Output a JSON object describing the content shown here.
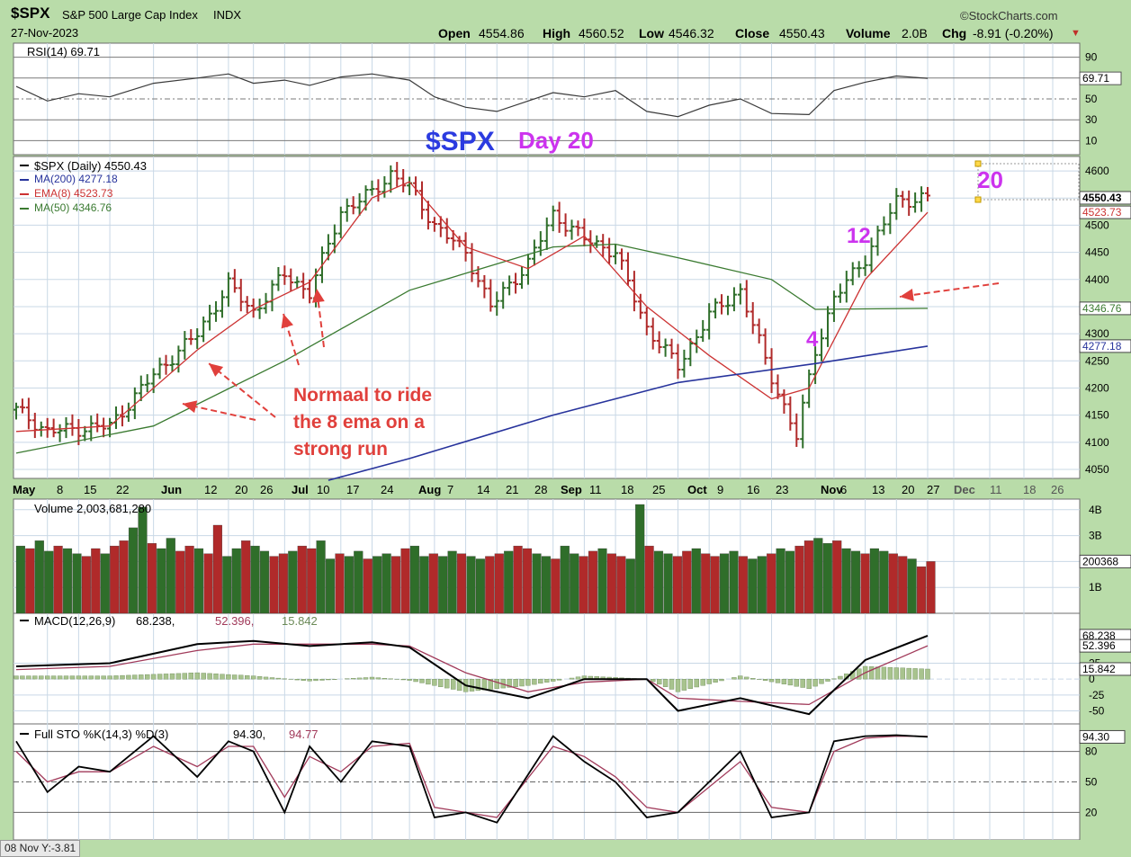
{
  "header": {
    "symbol": "$SPX",
    "name": "S&P 500 Large Cap Index",
    "exchange": "INDX",
    "date": "27-Nov-2023",
    "brand": "©StockCharts.com",
    "open_label": "Open",
    "open": "4554.86",
    "high_label": "High",
    "high": "4560.52",
    "low_label": "Low",
    "low": "4546.32",
    "close_label": "Close",
    "close": "4550.43",
    "volume_label": "Volume",
    "volume": "2.0B",
    "chg_label": "Chg",
    "chg": "-8.91 (-0.20%)",
    "chg_arrow": "▼"
  },
  "status_bar": "08 Nov Y:-3.81",
  "colors": {
    "background": "#b9dca9",
    "panel": "#ffffff",
    "grid": "#c9d8e6",
    "up_bar": "#2f6e2a",
    "down_bar": "#b02a2a",
    "ma200": "#27339c",
    "ema8": "#cc3333",
    "ma50": "#3a7a30",
    "annotation_red": "#e0403c",
    "annotation_magenta": "#cc33ee",
    "title_blue": "#2b3be0"
  },
  "chart_data": [
    {
      "type": "line",
      "panel": "rsi",
      "legend": "RSI(14) 69.71",
      "ylim": [
        0,
        100
      ],
      "ticks": [
        "90",
        "70",
        "50",
        "30",
        "10"
      ],
      "tick_values": [
        90,
        70,
        50,
        30,
        10
      ],
      "last_label": "69.71",
      "series": [
        {
          "name": "RSI(14)",
          "x": [
            "May 1",
            "May 8",
            "May 15",
            "May 22",
            "Jun 1",
            "Jun 12",
            "Jun 20",
            "Jun 26",
            "Jul 3",
            "Jul 10",
            "Jul 17",
            "Jul 24",
            "Aug 1",
            "Aug 7",
            "Aug 14",
            "Aug 21",
            "Aug 28",
            "Sep 1",
            "Sep 11",
            "Sep 18",
            "Sep 25",
            "Oct 2",
            "Oct 9",
            "Oct 16",
            "Oct 23",
            "Oct 31",
            "Nov 6",
            "Nov 13",
            "Nov 20",
            "Nov 27"
          ],
          "values": [
            62,
            48,
            55,
            52,
            65,
            70,
            74,
            65,
            68,
            63,
            71,
            74,
            68,
            52,
            42,
            38,
            48,
            56,
            52,
            58,
            38,
            33,
            44,
            50,
            36,
            35,
            58,
            66,
            72,
            69.71
          ]
        }
      ]
    },
    {
      "type": "line",
      "panel": "price",
      "title": "$SPX",
      "subtitle": "Day 20",
      "legend": [
        "$SPX (Daily) 4550.43",
        "MA(200) 4277.18",
        "EMA(8) 4523.73",
        "MA(50) 4346.76"
      ],
      "ylim": [
        4050,
        4620
      ],
      "ticks": [
        "4600",
        "4550",
        "4500",
        "4450",
        "4400",
        "4350",
        "4300",
        "4250",
        "4200",
        "4150",
        "4100",
        "4050"
      ],
      "tick_values": [
        4600,
        4550,
        4500,
        4450,
        4400,
        4350,
        4300,
        4250,
        4200,
        4150,
        4100,
        4050
      ],
      "right_labels": [
        "4550.43",
        "4523.73",
        "4346.76",
        "4277.18"
      ],
      "right_label_values": [
        4550.43,
        4523.73,
        4346.76,
        4277.18
      ],
      "x_axis_labels": [
        "May",
        "8",
        "15",
        "22",
        "Jun",
        "12",
        "20",
        "26",
        "Jul",
        "10",
        "17",
        "24",
        "Aug",
        "7",
        "14",
        "21",
        "28",
        "Sep",
        "11",
        "18",
        "25",
        "Oct",
        "9",
        "16",
        "23",
        "Nov",
        "6",
        "13",
        "20",
        "27",
        "Dec",
        "11",
        "18",
        "26"
      ],
      "annotations": {
        "note": "Normaal to ride the 8 ema on a strong run",
        "note_lines": [
          "Normaal to ride",
          "the 8 ema on a",
          "strong run"
        ],
        "count_4": "4",
        "count_12": "12",
        "count_20": "20"
      },
      "series": [
        {
          "name": "$SPX",
          "x": [
            "May 1",
            "May 8",
            "May 15",
            "May 22",
            "Jun 1",
            "Jun 12",
            "Jun 20",
            "Jun 26",
            "Jul 3",
            "Jul 10",
            "Jul 17",
            "Jul 24",
            "Jul 27",
            "Aug 1",
            "Aug 7",
            "Aug 14",
            "Aug 18",
            "Aug 28",
            "Sep 1",
            "Sep 11",
            "Sep 18",
            "Sep 25",
            "Oct 2",
            "Oct 9",
            "Oct 16",
            "Oct 23",
            "Oct 27",
            "Nov 1",
            "Nov 6",
            "Nov 13",
            "Nov 20",
            "Nov 27"
          ],
          "values": [
            4160,
            4120,
            4125,
            4130,
            4225,
            4300,
            4390,
            4340,
            4410,
            4375,
            4525,
            4560,
            4595,
            4570,
            4500,
            4450,
            4350,
            4430,
            4520,
            4475,
            4450,
            4310,
            4240,
            4335,
            4380,
            4220,
            4110,
            4270,
            4365,
            4440,
            4545,
            4550.43
          ]
        },
        {
          "name": "MA(200)",
          "x": [
            "Jul 13",
            "Aug 1",
            "Sep 1",
            "Oct 2",
            "Nov 1",
            "Nov 27"
          ],
          "values": [
            4030,
            4070,
            4150,
            4210,
            4245,
            4277.18
          ]
        },
        {
          "name": "EMA(8)",
          "x": [
            "May 1",
            "May 22",
            "Jun 12",
            "Jun 26",
            "Jul 10",
            "Jul 24",
            "Aug 1",
            "Aug 14",
            "Aug 28",
            "Sep 11",
            "Sep 25",
            "Oct 9",
            "Oct 23",
            "Oct 31",
            "Nov 13",
            "Nov 27"
          ],
          "values": [
            4120,
            4130,
            4270,
            4345,
            4395,
            4550,
            4580,
            4460,
            4420,
            4480,
            4350,
            4260,
            4180,
            4200,
            4400,
            4523.73
          ]
        },
        {
          "name": "MA(50)",
          "x": [
            "May 1",
            "Jun 1",
            "Jul 3",
            "Aug 1",
            "Sep 1",
            "Sep 18",
            "Oct 2",
            "Oct 23",
            "Nov 1",
            "Nov 27"
          ],
          "values": [
            4080,
            4130,
            4250,
            4380,
            4460,
            4465,
            4440,
            4400,
            4345,
            4346.76
          ]
        }
      ]
    },
    {
      "type": "bar",
      "panel": "volume",
      "legend": "Volume 2,003,681,280",
      "ticks": [
        "4B",
        "3B",
        "2B",
        "1B"
      ],
      "tick_values": [
        4,
        3,
        2,
        1
      ],
      "unit": "billions",
      "last_label": "200368",
      "ylim": [
        0,
        4.2
      ],
      "series": [
        {
          "name": "Volume",
          "values": [
            2.6,
            2.5,
            2.8,
            2.4,
            2.6,
            2.5,
            2.3,
            2.2,
            2.5,
            2.3,
            2.6,
            2.8,
            3.3,
            4.1,
            2.7,
            2.5,
            2.9,
            2.4,
            2.6,
            2.5,
            2.3,
            3.4,
            2.2,
            2.5,
            2.8,
            2.6,
            2.4,
            2.2,
            2.3,
            2.4,
            2.6,
            2.5,
            2.8,
            2.1,
            2.3,
            2.2,
            2.4,
            2.1,
            2.2,
            2.3,
            2.2,
            2.5,
            2.6,
            2.2,
            2.3,
            2.2,
            2.4,
            2.3,
            2.2,
            2.1,
            2.2,
            2.3,
            2.4,
            2.6,
            2.5,
            2.3,
            2.2,
            2.1,
            2.6,
            2.3,
            2.2,
            2.4,
            2.5,
            2.3,
            2.2,
            2.1,
            4.2,
            2.6,
            2.4,
            2.3,
            2.2,
            2.4,
            2.5,
            2.3,
            2.2,
            2.3,
            2.4,
            2.2,
            2.1,
            2.2,
            2.3,
            2.5,
            2.4,
            2.6,
            2.8,
            2.9,
            2.7,
            2.8,
            2.5,
            2.4,
            2.3,
            2.5,
            2.4,
            2.3,
            2.2,
            2.1,
            1.8,
            2.0
          ]
        }
      ]
    },
    {
      "type": "line",
      "panel": "macd",
      "legend_prefix": "MACD(12,26,9)",
      "legend_values": [
        "68.238",
        "52.396",
        "15.842"
      ],
      "ticks": [
        "25",
        "0",
        "-25",
        "-50"
      ],
      "tick_values": [
        25,
        0,
        -25,
        -50
      ],
      "ylim": [
        -62,
        95
      ],
      "right_labels": [
        "68.238",
        "52.396",
        "15.842"
      ],
      "right_label_values": [
        68.238,
        52.396,
        15.842
      ],
      "series": [
        {
          "name": "MACD",
          "x": [
            "May 1",
            "May 22",
            "Jun 12",
            "Jun 26",
            "Jul 10",
            "Jul 24",
            "Aug 1",
            "Aug 14",
            "Aug 28",
            "Sep 11",
            "Sep 25",
            "Oct 2",
            "Oct 16",
            "Oct 31",
            "Nov 13",
            "Nov 27"
          ],
          "values": [
            20,
            25,
            55,
            60,
            52,
            58,
            50,
            -10,
            -30,
            0,
            0,
            -50,
            -30,
            -55,
            30,
            68.238
          ]
        },
        {
          "name": "Signal",
          "x": [
            "May 1",
            "May 22",
            "Jun 12",
            "Jun 26",
            "Jul 10",
            "Jul 24",
            "Aug 1",
            "Aug 14",
            "Aug 28",
            "Sep 11",
            "Sep 25",
            "Oct 2",
            "Oct 16",
            "Oct 31",
            "Nov 13",
            "Nov 27"
          ],
          "values": [
            15,
            20,
            45,
            55,
            55,
            55,
            52,
            10,
            -20,
            -5,
            0,
            -30,
            -35,
            -40,
            10,
            52.396
          ]
        },
        {
          "name": "Histogram",
          "x": [
            "May 1",
            "May 22",
            "Jun 12",
            "Jun 26",
            "Jul 10",
            "Jul 24",
            "Aug 1",
            "Aug 14",
            "Aug 28",
            "Sep 11",
            "Sep 25",
            "Oct 2",
            "Oct 16",
            "Oct 31",
            "Nov 13",
            "Nov 27"
          ],
          "values": [
            5,
            5,
            10,
            5,
            -3,
            3,
            -2,
            -20,
            -10,
            5,
            0,
            -20,
            5,
            -15,
            20,
            15.842
          ]
        }
      ]
    },
    {
      "type": "line",
      "panel": "stochastic",
      "legend_prefix": "Full STO %K(14,3) %D(3)",
      "legend_values": [
        "94.30",
        "94.77"
      ],
      "ticks": [
        "80",
        "50",
        "20"
      ],
      "tick_values": [
        80,
        50,
        20
      ],
      "ylim": [
        0,
        100
      ],
      "right_labels": [
        "94.30"
      ],
      "right_label_values": [
        94.3
      ],
      "x_axis_labels": [
        "22",
        "Jun",
        "12",
        "20",
        "26",
        "Jul",
        "10",
        "17",
        "24",
        "Aug 7",
        "14",
        "21",
        "28",
        "Sep",
        "11",
        "18",
        "25",
        "Oct",
        "9",
        "16",
        "23",
        "Nov",
        "6",
        "13",
        "20",
        "27",
        "Dec",
        "11",
        "18",
        "26"
      ],
      "series": [
        {
          "name": "%K",
          "x": [
            "May 1",
            "May 8",
            "May 15",
            "May 22",
            "Jun 1",
            "Jun 12",
            "Jun 20",
            "Jun 26",
            "Jul 3",
            "Jul 10",
            "Jul 17",
            "Jul 24",
            "Aug 1",
            "Aug 7",
            "Aug 14",
            "Aug 21",
            "Sep 1",
            "Sep 11",
            "Sep 18",
            "Sep 25",
            "Oct 2",
            "Oct 16",
            "Oct 23",
            "Oct 31",
            "Nov 6",
            "Nov 13",
            "Nov 20",
            "Nov 27"
          ],
          "values": [
            90,
            40,
            65,
            60,
            95,
            55,
            90,
            80,
            20,
            85,
            50,
            90,
            85,
            15,
            20,
            10,
            95,
            70,
            50,
            15,
            20,
            80,
            15,
            20,
            90,
            95,
            96,
            94.3
          ]
        },
        {
          "name": "%D",
          "x": [
            "May 1",
            "May 8",
            "May 15",
            "May 22",
            "Jun 1",
            "Jun 12",
            "Jun 20",
            "Jun 26",
            "Jul 3",
            "Jul 10",
            "Jul 17",
            "Jul 24",
            "Aug 1",
            "Aug 7",
            "Aug 14",
            "Aug 21",
            "Sep 1",
            "Sep 11",
            "Sep 18",
            "Sep 25",
            "Oct 2",
            "Oct 16",
            "Oct 23",
            "Oct 31",
            "Nov 6",
            "Nov 13",
            "Nov 20",
            "Nov 27"
          ],
          "values": [
            80,
            50,
            60,
            60,
            85,
            65,
            85,
            85,
            35,
            75,
            60,
            85,
            88,
            25,
            20,
            15,
            85,
            75,
            55,
            25,
            20,
            70,
            25,
            20,
            80,
            93,
            95,
            94.77
          ]
        }
      ]
    }
  ]
}
